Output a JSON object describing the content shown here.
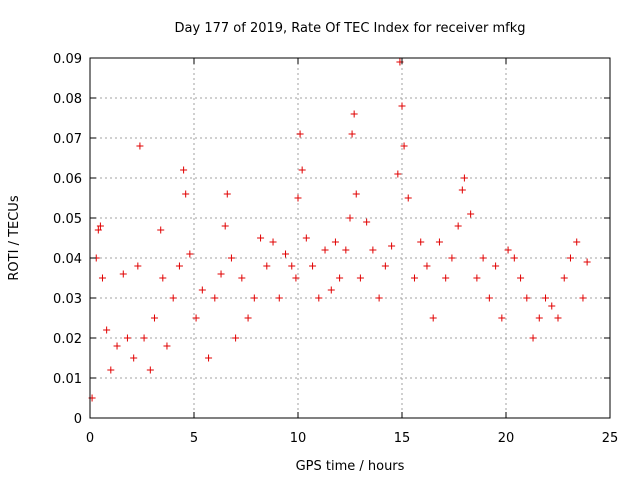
{
  "chart_data": {
    "type": "scatter",
    "title": "Day 177 of 2019, Rate Of TEC Index for receiver mfkg",
    "xlabel": "GPS time / hours",
    "ylabel": "ROTI / TECUs",
    "xlim": [
      0,
      25
    ],
    "ylim": [
      0,
      0.09
    ],
    "x_ticks": [
      0,
      5,
      10,
      15,
      20,
      25
    ],
    "x_tick_labels": [
      "0",
      "5",
      "10",
      "15",
      "20",
      "25"
    ],
    "y_ticks": [
      0,
      0.01,
      0.02,
      0.03,
      0.04,
      0.05,
      0.06,
      0.07,
      0.08,
      0.09
    ],
    "y_tick_labels": [
      "0",
      "0.01",
      "0.02",
      "0.03",
      "0.04",
      "0.05",
      "0.06",
      "0.07",
      "0.08",
      "0.09"
    ],
    "grid": true,
    "marker": "+",
    "color": "#e00000",
    "series": [
      {
        "name": "ROTI",
        "x": [
          0.1,
          0.3,
          0.4,
          0.5,
          0.6,
          0.8,
          1.0,
          1.3,
          1.6,
          1.8,
          2.1,
          2.3,
          2.4,
          2.6,
          2.9,
          3.1,
          3.4,
          3.5,
          3.7,
          4.0,
          4.3,
          4.5,
          4.6,
          4.8,
          5.1,
          5.4,
          5.7,
          6.0,
          6.3,
          6.5,
          6.6,
          6.8,
          7.0,
          7.3,
          7.6,
          7.9,
          8.2,
          8.5,
          8.8,
          9.1,
          9.4,
          9.7,
          9.9,
          10.0,
          10.1,
          10.2,
          10.4,
          10.7,
          11.0,
          11.3,
          11.6,
          11.8,
          12.0,
          12.3,
          12.5,
          12.6,
          12.7,
          12.8,
          13.0,
          13.3,
          13.6,
          13.9,
          14.2,
          14.5,
          14.8,
          14.9,
          15.0,
          15.1,
          15.3,
          15.6,
          15.9,
          16.2,
          16.5,
          16.8,
          17.1,
          17.4,
          17.7,
          17.9,
          18.0,
          18.3,
          18.6,
          18.9,
          19.2,
          19.5,
          19.8,
          20.1,
          20.4,
          20.7,
          21.0,
          21.3,
          21.6,
          21.9,
          22.2,
          22.5,
          22.8,
          23.1,
          23.4,
          23.7,
          23.9
        ],
        "y": [
          0.005,
          0.04,
          0.047,
          0.048,
          0.035,
          0.022,
          0.012,
          0.018,
          0.036,
          0.02,
          0.015,
          0.038,
          0.068,
          0.02,
          0.012,
          0.025,
          0.047,
          0.035,
          0.018,
          0.03,
          0.038,
          0.062,
          0.056,
          0.041,
          0.025,
          0.032,
          0.015,
          0.03,
          0.036,
          0.048,
          0.056,
          0.04,
          0.02,
          0.035,
          0.025,
          0.03,
          0.045,
          0.038,
          0.044,
          0.03,
          0.041,
          0.038,
          0.035,
          0.055,
          0.071,
          0.062,
          0.045,
          0.038,
          0.03,
          0.042,
          0.032,
          0.044,
          0.035,
          0.042,
          0.05,
          0.071,
          0.076,
          0.056,
          0.035,
          0.049,
          0.042,
          0.03,
          0.038,
          0.043,
          0.061,
          0.089,
          0.078,
          0.068,
          0.055,
          0.035,
          0.044,
          0.038,
          0.025,
          0.044,
          0.035,
          0.04,
          0.048,
          0.057,
          0.06,
          0.051,
          0.035,
          0.04,
          0.03,
          0.038,
          0.025,
          0.042,
          0.04,
          0.035,
          0.03,
          0.02,
          0.025,
          0.03,
          0.028,
          0.025,
          0.035,
          0.04,
          0.044,
          0.03,
          0.039
        ]
      }
    ]
  }
}
